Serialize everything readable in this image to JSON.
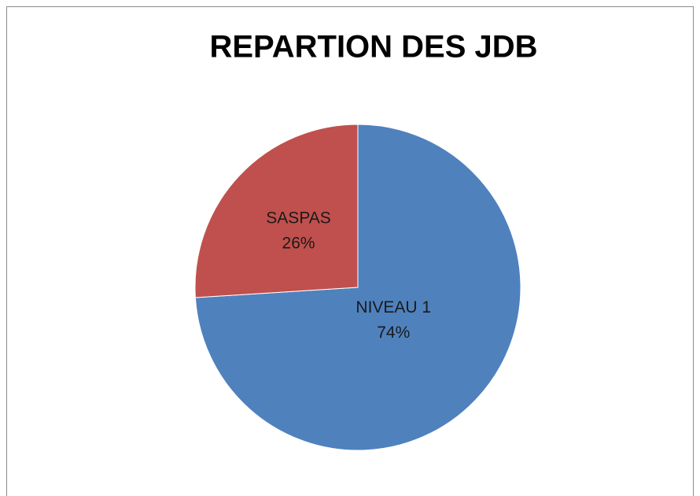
{
  "chart_data": {
    "type": "pie",
    "title": "REPARTION DES JDB",
    "categories": [
      "NIVEAU 1",
      "SASPAS"
    ],
    "values": [
      74,
      26
    ],
    "value_labels": [
      "74%",
      "26%"
    ],
    "colors": [
      "#4f81bd",
      "#c0504d"
    ]
  }
}
